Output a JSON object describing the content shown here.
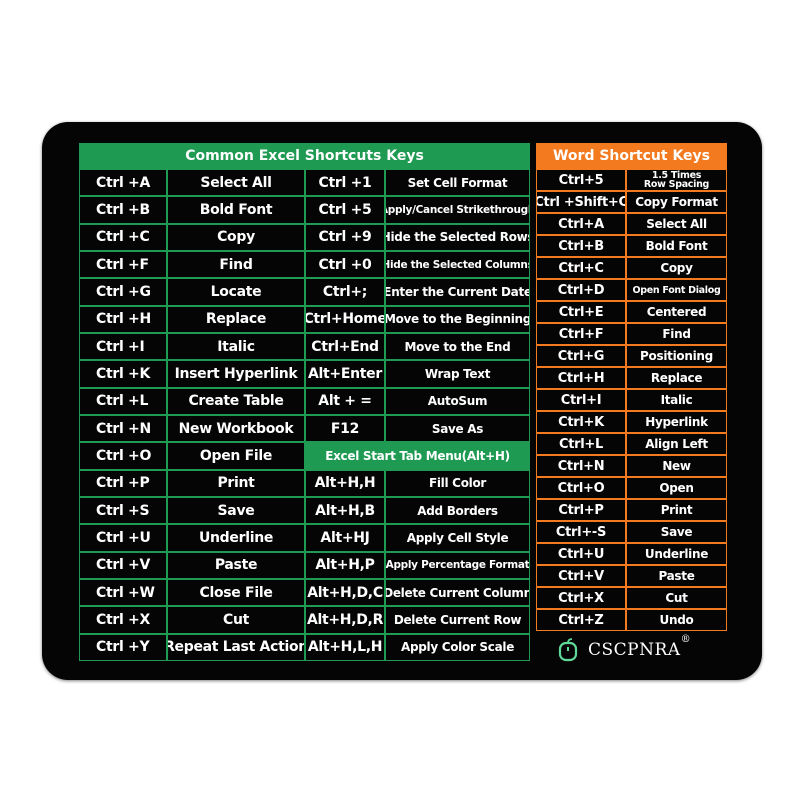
{
  "excel": {
    "title": "Common Excel Shortcuts Keys",
    "rows": [
      [
        "Ctrl +A",
        "Select All",
        "Ctrl +1",
        "Set Cell Format"
      ],
      [
        "Ctrl +B",
        "Bold Font",
        "Ctrl +5",
        "Apply/Cancel Strikethrough"
      ],
      [
        "Ctrl +C",
        "Copy",
        "Ctrl +9",
        "Hide the Selected Rows"
      ],
      [
        "Ctrl +F",
        "Find",
        "Ctrl +0",
        "Hide the Selected Columns"
      ],
      [
        "Ctrl +G",
        "Locate",
        "Ctrl+;",
        "Enter the Current Date"
      ],
      [
        "Ctrl +H",
        "Replace",
        "Ctrl+Home",
        "Move to the Beginning"
      ],
      [
        "Ctrl +I",
        "Italic",
        "Ctrl+End",
        "Move to the End"
      ],
      [
        "Ctrl +K",
        "Insert Hyperlink",
        "Alt+Enter",
        "Wrap Text"
      ],
      [
        "Ctrl +L",
        "Create Table",
        "Alt + =",
        "AutoSum"
      ],
      [
        "Ctrl +N",
        "New Workbook",
        "F12",
        "Save As"
      ],
      [
        "Ctrl +O",
        "Open File",
        "Excel Start Tab Menu(Alt+H)"
      ],
      [
        "Ctrl +P",
        "Print",
        "Alt+H,H",
        "Fill Color"
      ],
      [
        "Ctrl +S",
        "Save",
        "Alt+H,B",
        "Add Borders"
      ],
      [
        "Ctrl +U",
        "Underline",
        "Alt+HJ",
        "Apply Cell Style"
      ],
      [
        "Ctrl +V",
        "Paste",
        "Alt+H,P",
        "Apply Percentage Format"
      ],
      [
        "Ctrl +W",
        "Close File",
        "Alt+H,D,C",
        "Delete Current Column"
      ],
      [
        "Ctrl +X",
        "Cut",
        "Alt+H,D,R",
        "Delete Current Row"
      ],
      [
        "Ctrl +Y",
        "Repeat Last Action",
        "Alt+H,L,H",
        "Apply Color Scale"
      ]
    ]
  },
  "word": {
    "title": "Word Shortcut Keys",
    "first_row": {
      "key": "Ctrl+5",
      "desc_line1": "1.5 Times",
      "desc_line2": "Row Spacing"
    },
    "rows": [
      [
        "Ctrl +Shift+C",
        "Copy Format"
      ],
      [
        "Ctrl+A",
        "Select All"
      ],
      [
        "Ctrl+B",
        "Bold Font"
      ],
      [
        "Ctrl+C",
        "Copy"
      ],
      [
        "Ctrl+D",
        "Open Font Dialog"
      ],
      [
        "Ctrl+E",
        "Centered"
      ],
      [
        "Ctrl+F",
        "Find"
      ],
      [
        "Ctrl+G",
        "Positioning"
      ],
      [
        "Ctrl+H",
        "Replace"
      ],
      [
        "Ctrl+I",
        "Italic"
      ],
      [
        "Ctrl+K",
        "Hyperlink"
      ],
      [
        "Ctrl+L",
        "Align Left"
      ],
      [
        "Ctrl+N",
        "New"
      ],
      [
        "Ctrl+O",
        "Open"
      ],
      [
        "Ctrl+P",
        "Print"
      ],
      [
        "Ctrl+-S",
        "Save"
      ],
      [
        "Ctrl+U",
        "Underline"
      ],
      [
        "Ctrl+V",
        "Paste"
      ],
      [
        "Ctrl+X",
        "Cut"
      ],
      [
        "Ctrl+Z",
        "Undo"
      ]
    ]
  },
  "brand": {
    "name": "CSCPNRA",
    "mark": "®",
    "icon": "mouse-icon"
  },
  "colors": {
    "excel_green": "#1e9a52",
    "word_orange": "#f37a1f",
    "pad": "#050505",
    "logo_icon": "#5fd99a"
  }
}
